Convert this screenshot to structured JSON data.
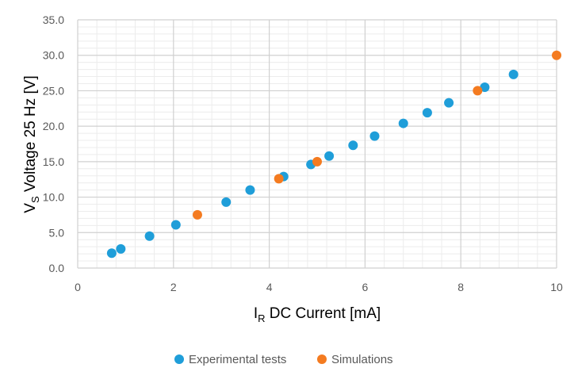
{
  "chart_data": {
    "type": "scatter",
    "xlabel": {
      "main": "I",
      "sub": "R",
      "rest": " DC Current [mA]"
    },
    "ylabel": {
      "main": "V",
      "sub": "S",
      "rest": " Voltage 25 Hz [V]"
    },
    "xlim": [
      0,
      10
    ],
    "ylim": [
      0,
      35
    ],
    "x_ticks": [
      "0",
      "2",
      "4",
      "6",
      "8",
      "10"
    ],
    "y_ticks": [
      "0.0",
      "5.0",
      "10.0",
      "15.0",
      "20.0",
      "25.0",
      "30.0",
      "35.0"
    ],
    "grid": {
      "major": true,
      "minor": true
    },
    "legend_position": "bottom",
    "series": [
      {
        "name": "Experimental tests",
        "color": "#1f9ed9",
        "points": [
          [
            0.71,
            2.1
          ],
          [
            0.9,
            2.7
          ],
          [
            1.5,
            4.5
          ],
          [
            2.05,
            6.1
          ],
          [
            3.1,
            9.3
          ],
          [
            3.6,
            11.0
          ],
          [
            4.3,
            12.9
          ],
          [
            4.87,
            14.6
          ],
          [
            5.25,
            15.8
          ],
          [
            5.75,
            17.3
          ],
          [
            6.2,
            18.6
          ],
          [
            6.8,
            20.4
          ],
          [
            7.3,
            21.9
          ],
          [
            7.75,
            23.3
          ],
          [
            8.5,
            25.5
          ],
          [
            9.1,
            27.3
          ]
        ]
      },
      {
        "name": "Simulations",
        "color": "#f47b20",
        "points": [
          [
            2.5,
            7.5
          ],
          [
            4.2,
            12.6
          ],
          [
            5.0,
            15.0
          ],
          [
            8.35,
            25.0
          ],
          [
            10.0,
            30.0
          ]
        ]
      }
    ]
  }
}
